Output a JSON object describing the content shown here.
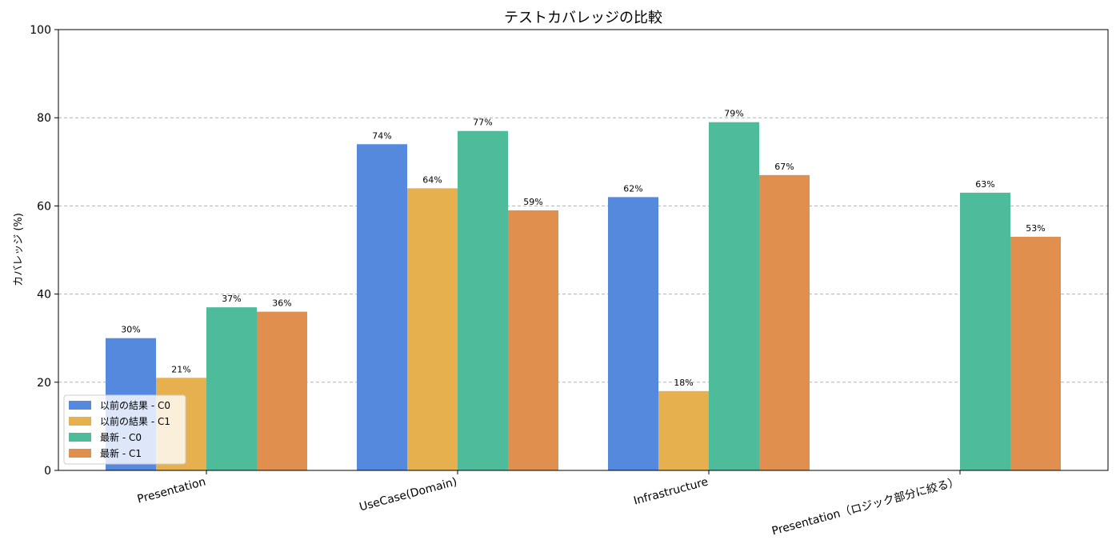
{
  "chart_data": {
    "type": "bar",
    "title": "テストカバレッジの比較",
    "xlabel": "",
    "ylabel": "カバレッジ (%)",
    "ylim": [
      0,
      100
    ],
    "yticks": [
      0,
      20,
      40,
      60,
      80,
      100
    ],
    "grid": "horizontal dashed",
    "legend_position": "lower-left",
    "categories": [
      "Presentation",
      "UseCase(Domain)",
      "Infrastructure",
      "Presentation（ロジック部分に絞る）"
    ],
    "series": [
      {
        "name": "以前の結果 - C0",
        "color": "#5589de",
        "values": [
          30,
          74,
          62,
          null
        ]
      },
      {
        "name": "以前の結果 - C1",
        "color": "#e6b04e",
        "values": [
          21,
          64,
          18,
          null
        ]
      },
      {
        "name": "最新 - C0",
        "color": "#4ebb9b",
        "values": [
          37,
          77,
          79,
          63
        ]
      },
      {
        "name": "最新 - C1",
        "color": "#e18f4e",
        "values": [
          36,
          59,
          67,
          53
        ]
      }
    ],
    "value_suffix": "%"
  }
}
